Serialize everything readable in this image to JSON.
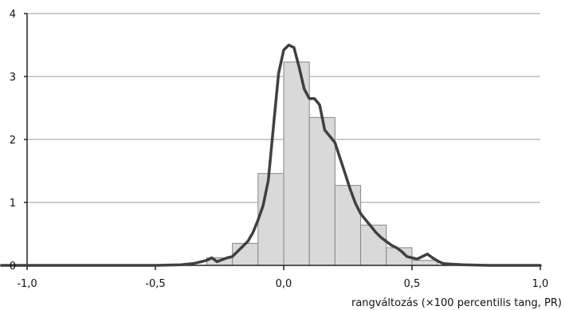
{
  "chart_data": {
    "type": "bar",
    "xlabel": "rangváltozás (×100 percentilis tang, PR)",
    "ylabel": "",
    "title": "",
    "xlim": [
      -1.1,
      1.0
    ],
    "ylim": [
      0,
      4
    ],
    "x_ticks": [
      -1.0,
      -0.5,
      0.0,
      0.5,
      1.0
    ],
    "x_tick_labels": [
      "-1,0",
      "-0,5",
      "0,0",
      "0,5",
      "1,0"
    ],
    "y_ticks": [
      0,
      1,
      2,
      3,
      4
    ],
    "y_tick_labels": [
      "0",
      "1",
      "2",
      "3",
      "4"
    ],
    "grid": "horizontal",
    "bar_color": "#d9d9d9",
    "bar_edge_color": "#888888",
    "line_color": "#404040",
    "bars": [
      {
        "x0": -0.3,
        "x1": -0.2,
        "value": 0.12
      },
      {
        "x0": -0.2,
        "x1": -0.1,
        "value": 0.35
      },
      {
        "x0": -0.1,
        "x1": 0.0,
        "value": 1.46
      },
      {
        "x0": 0.0,
        "x1": 0.1,
        "value": 3.23
      },
      {
        "x0": 0.1,
        "x1": 0.2,
        "value": 2.35
      },
      {
        "x0": 0.2,
        "x1": 0.3,
        "value": 1.27
      },
      {
        "x0": 0.3,
        "x1": 0.4,
        "value": 0.64
      },
      {
        "x0": 0.4,
        "x1": 0.5,
        "value": 0.28
      },
      {
        "x0": 0.5,
        "x1": 0.6,
        "value": 0.08
      }
    ],
    "density": {
      "x": [
        -1.1,
        -0.5,
        -0.4,
        -0.35,
        -0.3,
        -0.28,
        -0.26,
        -0.24,
        -0.22,
        -0.2,
        -0.18,
        -0.16,
        -0.14,
        -0.12,
        -0.1,
        -0.08,
        -0.06,
        -0.04,
        -0.02,
        0.0,
        0.02,
        0.04,
        0.06,
        0.08,
        0.1,
        0.12,
        0.14,
        0.16,
        0.18,
        0.2,
        0.22,
        0.24,
        0.26,
        0.28,
        0.3,
        0.32,
        0.34,
        0.36,
        0.38,
        0.4,
        0.42,
        0.44,
        0.46,
        0.48,
        0.5,
        0.52,
        0.54,
        0.56,
        0.58,
        0.6,
        0.62,
        0.65,
        0.7,
        0.8,
        1.0
      ],
      "y": [
        0.0,
        0.0,
        0.01,
        0.03,
        0.08,
        0.12,
        0.06,
        0.09,
        0.12,
        0.14,
        0.22,
        0.3,
        0.38,
        0.52,
        0.72,
        0.95,
        1.35,
        2.2,
        3.05,
        3.42,
        3.5,
        3.46,
        3.15,
        2.8,
        2.65,
        2.65,
        2.55,
        2.15,
        2.05,
        1.95,
        1.7,
        1.45,
        1.2,
        0.98,
        0.82,
        0.72,
        0.62,
        0.52,
        0.44,
        0.38,
        0.32,
        0.28,
        0.22,
        0.14,
        0.12,
        0.1,
        0.14,
        0.18,
        0.12,
        0.07,
        0.03,
        0.02,
        0.01,
        0.0,
        0.0
      ]
    }
  }
}
